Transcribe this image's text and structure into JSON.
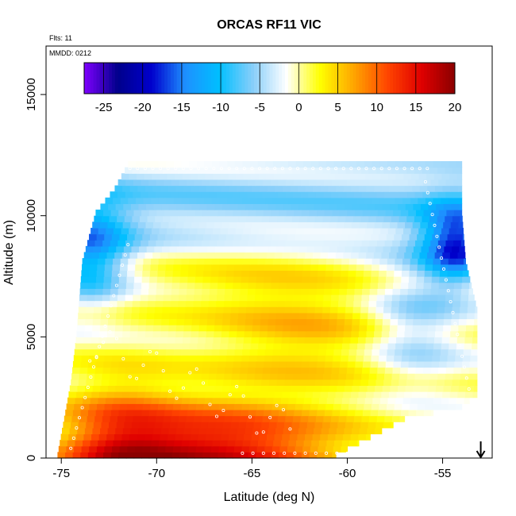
{
  "chart_data": {
    "type": "heatmap",
    "title": "ORCAS RF11 VIC",
    "flights_note": "Flts: 11",
    "date_note": "MMDD: 0212",
    "xlabel": "Latitude (deg N)",
    "ylabel": "Altitude (m)",
    "xlim": [
      -75.8,
      -52.4
    ],
    "ylim": [
      0,
      17000
    ],
    "x_ticks": [
      "-75",
      "-70",
      "-65",
      "-60",
      "-55"
    ],
    "y_ticks": [
      "0",
      "5000",
      "10000",
      "15000"
    ],
    "colorbar": {
      "range": [
        -27.5,
        20
      ],
      "ticks": [
        "-25",
        "-20",
        "-15",
        "-10",
        "-5",
        "0",
        "5",
        "10",
        "15",
        "20"
      ],
      "colors": [
        "#7F00FF",
        "#00008B",
        "#0000CD",
        "#1E90FF",
        "#00BFFF",
        "#87CEFA",
        "#FFFFFF",
        "#FFFF00",
        "#FFA500",
        "#FF4500",
        "#E00000",
        "#8B0000"
      ]
    },
    "marker_latitude": -53.0,
    "envelope_left": [
      [
        0,
        -75.2
      ],
      [
        3000,
        -74.5
      ],
      [
        5000,
        -74.2
      ],
      [
        8000,
        -73.9
      ],
      [
        10000,
        -73.2
      ],
      [
        11000,
        -72.2
      ],
      [
        12000,
        -71.5
      ]
    ],
    "envelope_right": [
      [
        0,
        -60.6
      ],
      [
        1500,
        -57
      ],
      [
        2000,
        -54
      ],
      [
        2500,
        -53.2
      ],
      [
        4000,
        -53.2
      ],
      [
        6000,
        -53.2
      ],
      [
        8000,
        -53.8
      ],
      [
        10000,
        -54.0
      ],
      [
        12000,
        -54.0
      ]
    ],
    "field_description": "VIC difference values (color) by latitude and altitude"
  }
}
